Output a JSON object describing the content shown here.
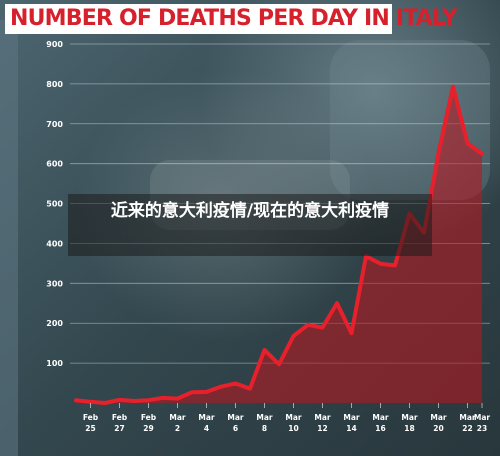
{
  "caption": "近来的意大利疫情/现在的意大利疫情",
  "colors": {
    "title": "#d6202c",
    "line": "#e8202b",
    "fill": "#c0141e",
    "grid": "#ffffff"
  },
  "chart_data": {
    "type": "area",
    "title": "NUMBER OF DEATHS PER DAY IN ITALY",
    "xlabel": "",
    "ylabel": "",
    "ylim": [
      0,
      900
    ],
    "yticks": [
      100,
      200,
      300,
      400,
      500,
      600,
      700,
      800,
      900
    ],
    "x_tick_labels": [
      "Feb 25",
      "Feb 27",
      "Feb 29",
      "Mar 2",
      "Mar 4",
      "Mar 6",
      "Mar 8",
      "Mar 10",
      "Mar 12",
      "Mar 14",
      "Mar 16",
      "Mar 18",
      "Mar 20",
      "Mar 22",
      "Mar 23"
    ],
    "grid": true,
    "series": [
      {
        "x": [
          "Feb 24",
          "Feb 25",
          "Feb 26",
          "Feb 27",
          "Feb 28",
          "Feb 29",
          "Mar 1",
          "Mar 2",
          "Mar 3",
          "Mar 4",
          "Mar 5",
          "Mar 6",
          "Mar 7",
          "Mar 8",
          "Mar 9",
          "Mar 10",
          "Mar 11",
          "Mar 12",
          "Mar 13",
          "Mar 14",
          "Mar 15",
          "Mar 16",
          "Mar 17",
          "Mar 18",
          "Mar 19",
          "Mar 20",
          "Mar 21",
          "Mar 22",
          "Mar 23"
        ],
        "values": [
          7,
          3,
          0,
          8,
          5,
          7,
          13,
          11,
          27,
          28,
          41,
          49,
          36,
          133,
          97,
          168,
          196,
          189,
          250,
          175,
          368,
          349,
          345,
          475,
          427,
          627,
          793,
          651,
          625
        ]
      }
    ]
  }
}
